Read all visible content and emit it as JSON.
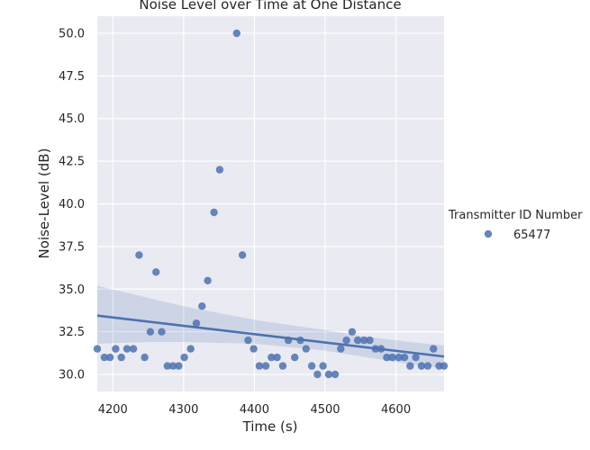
{
  "chart_data": {
    "type": "scatter",
    "title": "Noise Level over Time at One Distance",
    "xlabel": "Time (s)",
    "ylabel": "Noise-Level (dB)",
    "xlim": [
      4178,
      4668
    ],
    "ylim": [
      29.0,
      51.0
    ],
    "xticks": [
      4200,
      4300,
      4400,
      4500,
      4600
    ],
    "yticks": [
      30.0,
      32.5,
      35.0,
      37.5,
      40.0,
      42.5,
      45.0,
      47.5,
      50.0
    ],
    "ytick_labels": [
      "30.0",
      "32.5",
      "35.0",
      "37.5",
      "40.0",
      "42.5",
      "45.0",
      "47.5",
      "50.0"
    ],
    "grid": true,
    "legend": {
      "title": "Transmitter ID Number",
      "placement": "right"
    },
    "series": [
      {
        "name": "65477",
        "color": "#4c72b0",
        "points": [
          [
            4178,
            31.5
          ],
          [
            4188,
            31.0
          ],
          [
            4196,
            31.0
          ],
          [
            4204,
            31.5
          ],
          [
            4212,
            31.0
          ],
          [
            4220,
            31.5
          ],
          [
            4229,
            31.5
          ],
          [
            4237,
            37.0
          ],
          [
            4245,
            31.0
          ],
          [
            4253,
            32.5
          ],
          [
            4261,
            36.0
          ],
          [
            4269,
            32.5
          ],
          [
            4277,
            30.5
          ],
          [
            4285,
            30.5
          ],
          [
            4293,
            30.5
          ],
          [
            4301,
            31.0
          ],
          [
            4310,
            31.5
          ],
          [
            4318,
            33.0
          ],
          [
            4326,
            34.0
          ],
          [
            4334,
            35.5
          ],
          [
            4343,
            39.5
          ],
          [
            4351,
            42.0
          ],
          [
            4375,
            50.0
          ],
          [
            4383,
            37.0
          ],
          [
            4391,
            32.0
          ],
          [
            4399,
            31.5
          ],
          [
            4407,
            30.5
          ],
          [
            4416,
            30.5
          ],
          [
            4424,
            31.0
          ],
          [
            4432,
            31.0
          ],
          [
            4440,
            30.5
          ],
          [
            4448,
            32.0
          ],
          [
            4457,
            31.0
          ],
          [
            4465,
            32.0
          ],
          [
            4473,
            31.5
          ],
          [
            4481,
            30.5
          ],
          [
            4489,
            30.0
          ],
          [
            4497,
            30.5
          ],
          [
            4505,
            30.0
          ],
          [
            4514,
            30.0
          ],
          [
            4522,
            31.5
          ],
          [
            4530,
            32.0
          ],
          [
            4538,
            32.5
          ],
          [
            4546,
            32.0
          ],
          [
            4555,
            32.0
          ],
          [
            4563,
            32.0
          ],
          [
            4571,
            31.5
          ],
          [
            4579,
            31.5
          ],
          [
            4587,
            31.0
          ],
          [
            4595,
            31.0
          ],
          [
            4604,
            31.0
          ],
          [
            4612,
            31.0
          ],
          [
            4620,
            30.5
          ],
          [
            4628,
            31.0
          ],
          [
            4636,
            30.5
          ],
          [
            4645,
            30.5
          ],
          [
            4653,
            31.5
          ],
          [
            4661,
            30.5
          ],
          [
            4668,
            30.5
          ]
        ]
      }
    ],
    "regression": {
      "line": [
        [
          4178,
          33.45
        ],
        [
          4668,
          31.05
        ]
      ],
      "ci_upper": [
        [
          4178,
          35.2
        ],
        [
          4300,
          34.0
        ],
        [
          4400,
          33.2
        ],
        [
          4450,
          32.9
        ],
        [
          4500,
          32.6
        ],
        [
          4560,
          32.2
        ],
        [
          4620,
          31.9
        ],
        [
          4668,
          31.7
        ]
      ],
      "ci_lower": [
        [
          4178,
          31.8
        ],
        [
          4250,
          31.9
        ],
        [
          4300,
          31.9
        ],
        [
          4400,
          31.8
        ],
        [
          4450,
          31.6
        ],
        [
          4500,
          31.4
        ],
        [
          4560,
          31.0
        ],
        [
          4620,
          30.6
        ],
        [
          4668,
          30.35
        ]
      ]
    }
  }
}
